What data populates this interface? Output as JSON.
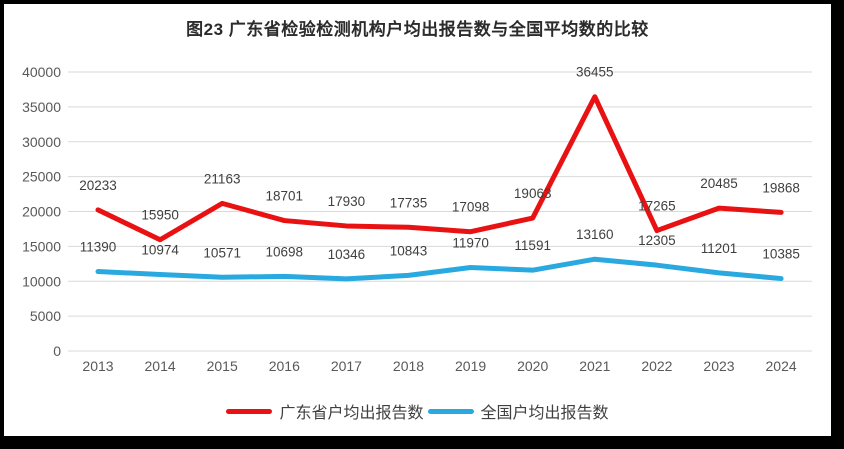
{
  "frame": {
    "border_color": "#000000",
    "background": "#ffffff"
  },
  "colors": {
    "gridline": "#d9d9d9",
    "axis_text": "#595959",
    "data_label_text": "#3f3f3f",
    "title_text": "#2b2b2b",
    "legend_text": "#404040"
  },
  "chart_data": {
    "type": "line",
    "title": "图23  广东省检验检测机构户均出报告数与全国平均数的比较",
    "categories": [
      "2013",
      "2014",
      "2015",
      "2016",
      "2017",
      "2018",
      "2019",
      "2020",
      "2021",
      "2022",
      "2023",
      "2024"
    ],
    "series": [
      {
        "id": "guangdong",
        "name": "广东省户均出报告数",
        "color": "#e91212",
        "values": [
          20233,
          15950,
          21163,
          18701,
          17930,
          17735,
          17098,
          19063,
          36455,
          17265,
          20485,
          19868
        ]
      },
      {
        "id": "national",
        "name": "全国户均出报告数",
        "color": "#29a9e0",
        "values": [
          11390,
          10974,
          10571,
          10698,
          10346,
          10843,
          11970,
          11591,
          13160,
          12305,
          11201,
          10385
        ]
      }
    ],
    "xlabel": "",
    "ylabel": "",
    "y_axis": {
      "min": 0,
      "max": 40000,
      "step": 5000,
      "ticks": [
        0,
        5000,
        10000,
        15000,
        20000,
        25000,
        30000,
        35000,
        40000
      ]
    },
    "grid": true,
    "data_labels": true,
    "legend_position": "bottom"
  }
}
